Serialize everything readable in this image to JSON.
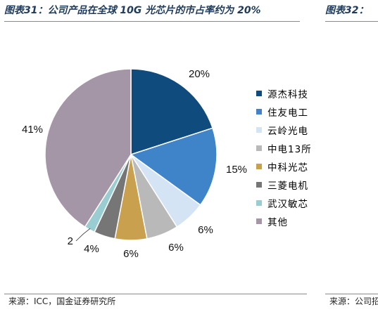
{
  "header": {
    "title_left": "图表31：公司产品在全球 10G 光芯片的市占率约为 20%",
    "title_right": "图表32：",
    "source_left": "来源：ICC，国金证券研究所",
    "source_right": "来源：公司招"
  },
  "chart_data": {
    "type": "pie",
    "title": "",
    "start_angle_deg": 90,
    "direction": "clockwise",
    "legend_position": "right",
    "slices": [
      {
        "name": "源杰科技",
        "value": 20,
        "label": "20%",
        "color": "#0f4c7d"
      },
      {
        "name": "住友电工",
        "value": 15,
        "label": "15%",
        "color": "#3f83c8"
      },
      {
        "name": "云岭光电",
        "value": 6,
        "label": "6%",
        "color": "#d4e4f5"
      },
      {
        "name": "中电13所",
        "value": 6,
        "label": "6%",
        "color": "#b9b9b9"
      },
      {
        "name": "中科光芯",
        "value": 6,
        "label": "6%",
        "color": "#c8a04e"
      },
      {
        "name": "三菱电机",
        "value": 4,
        "label": "4%",
        "color": "#767676"
      },
      {
        "name": "武汉敏芯",
        "value": 2,
        "label": "2",
        "color": "#9acdd2"
      },
      {
        "name": "其他",
        "value": 41,
        "label": "41%",
        "color": "#a496a6"
      }
    ]
  }
}
